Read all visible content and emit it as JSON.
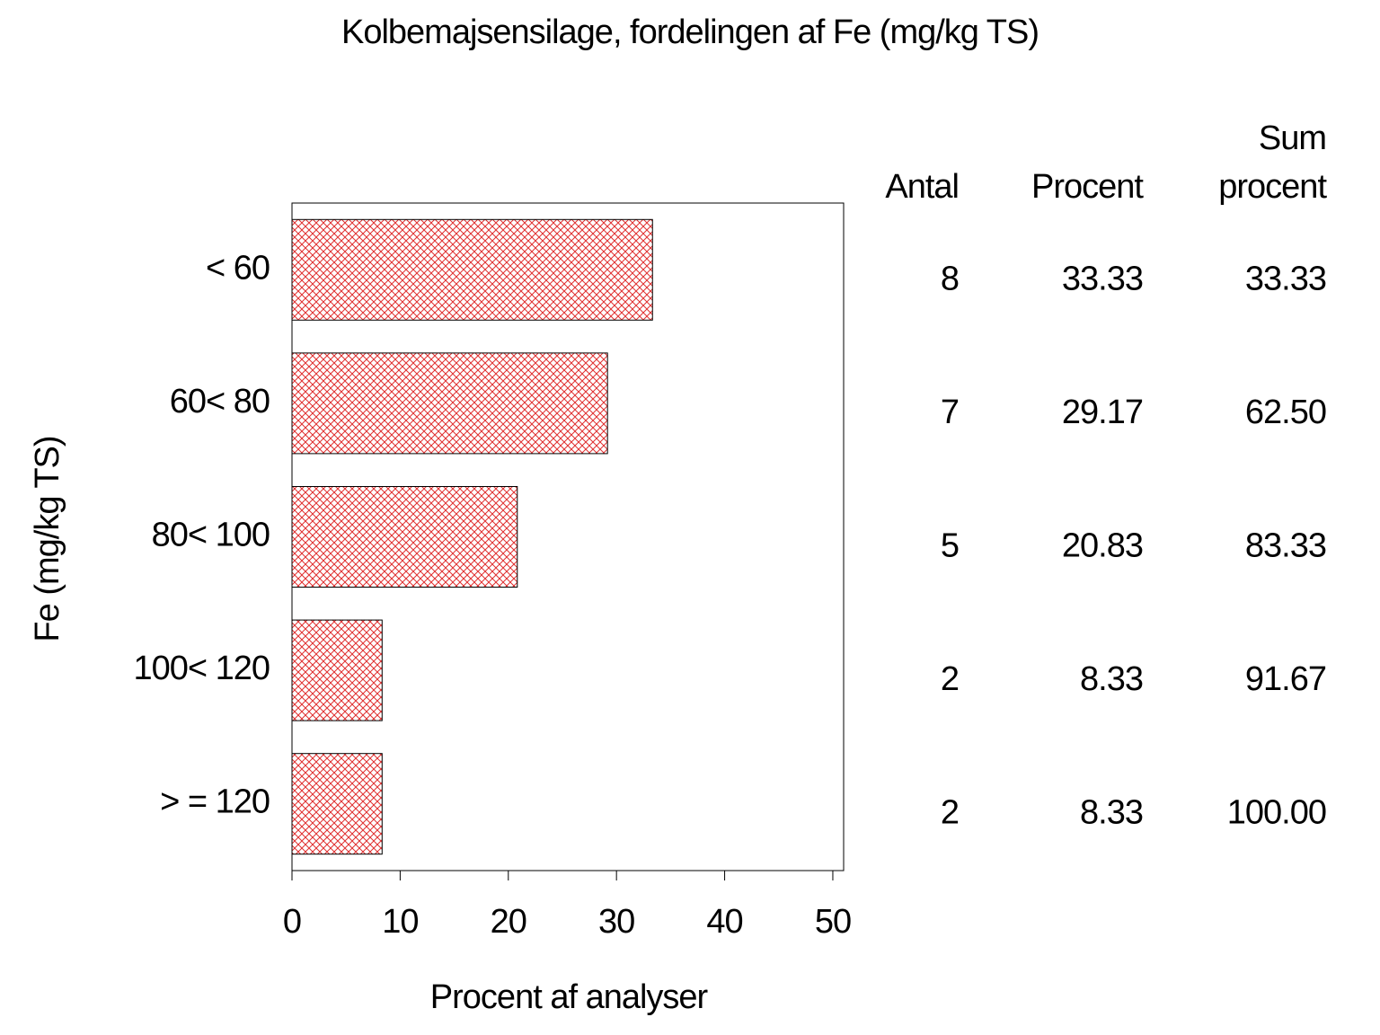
{
  "chart_data": {
    "type": "bar",
    "orientation": "horizontal",
    "title": "Kolbemajsensilage,  fordelingen  af  Fe  (mg/kg  TS)",
    "y_label": "Fe  (mg/kg  TS)",
    "x_label": "Procent  af  analyser",
    "categories": [
      "< 60",
      "60< 80",
      "80< 100",
      "100< 120",
      "> = 120"
    ],
    "values": [
      33.33,
      29.17,
      20.83,
      8.33,
      8.33
    ],
    "color": "#e03030",
    "xlim": [
      0,
      51
    ],
    "xticks": [
      0,
      10,
      20,
      30,
      40,
      50
    ],
    "table": {
      "headers": [
        "Antal",
        "Procent",
        [
          "Sum",
          "procent"
        ]
      ],
      "counts": [
        8,
        7,
        5,
        2,
        2
      ],
      "cumulative": [
        "33.33",
        "62.50",
        "83.33",
        "91.67",
        "100.00"
      ]
    }
  }
}
